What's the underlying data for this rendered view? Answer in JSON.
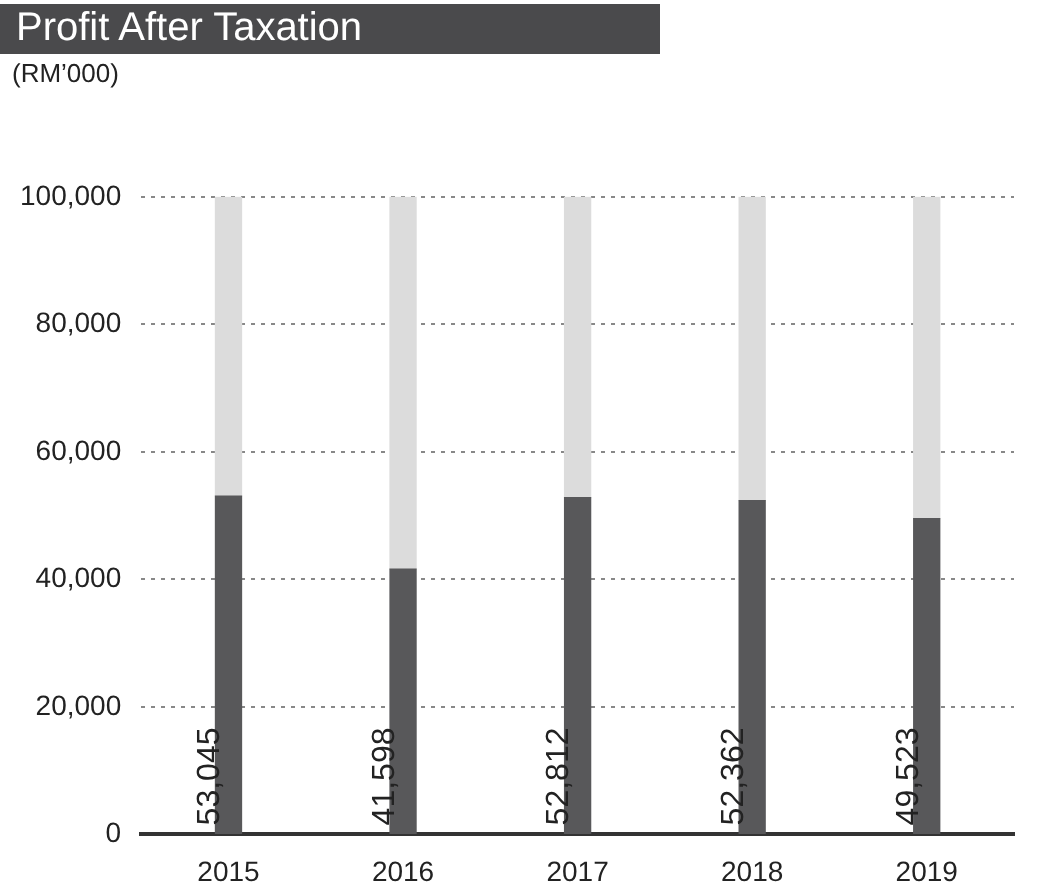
{
  "chart_data": {
    "type": "bar",
    "title": "Profit After Taxation",
    "ylabel": "(RM’000)",
    "categories": [
      "2015",
      "2016",
      "2017",
      "2018",
      "2019"
    ],
    "stacked": true,
    "series": [
      {
        "color": "#58585a",
        "values": [
          53045,
          41598,
          52812,
          52362,
          49523
        ],
        "value_labels": [
          "53,045",
          "41,598",
          "52,812",
          "52,362",
          "49,523"
        ]
      },
      {
        "color": "#dcdcdc",
        "values": [
          46955,
          58402,
          47188,
          47638,
          50477
        ]
      }
    ],
    "ylim": [
      0,
      100000
    ],
    "yticks": [
      {
        "value": 0,
        "label": "0"
      },
      {
        "value": 20000,
        "label": "20,000"
      },
      {
        "value": 40000,
        "label": "40,000"
      },
      {
        "value": 60000,
        "label": "60,000"
      },
      {
        "value": 80000,
        "label": "80,000"
      },
      {
        "value": 100000,
        "label": "100,000"
      }
    ],
    "grid": "y",
    "legend": false
  }
}
